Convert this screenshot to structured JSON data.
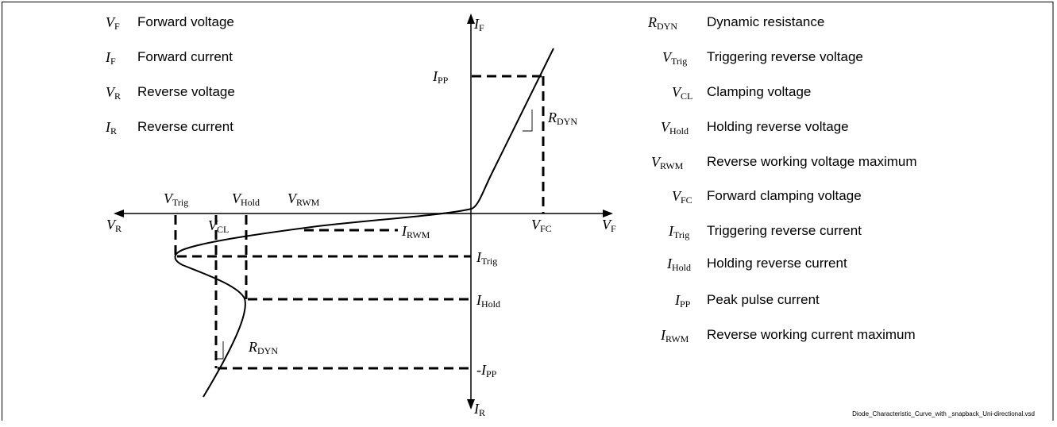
{
  "legend_left": [
    {
      "sym": "V",
      "sub": "F",
      "desc": "Forward voltage"
    },
    {
      "sym": "I",
      "sub": "F",
      "desc": "Forward current"
    },
    {
      "sym": "V",
      "sub": "R",
      "desc": "Reverse voltage"
    },
    {
      "sym": "I",
      "sub": "R",
      "desc": "Reverse current"
    }
  ],
  "legend_right": [
    {
      "sym": "R",
      "sub": "DYN",
      "desc": "Dynamic resistance"
    },
    {
      "sym": "V",
      "sub": "Trig",
      "desc": "Triggering reverse voltage"
    },
    {
      "sym": "V",
      "sub": "CL",
      "desc": "Clamping voltage"
    },
    {
      "sym": "V",
      "sub": "Hold",
      "desc": "Holding reverse voltage"
    },
    {
      "sym": "V",
      "sub": "RWM",
      "desc": "Reverse working voltage maximum"
    },
    {
      "sym": "V",
      "sub": "FC",
      "desc": "Forward clamping voltage"
    },
    {
      "sym": "I",
      "sub": "Trig",
      "desc": "Triggering reverse current"
    },
    {
      "sym": "I",
      "sub": "Hold",
      "desc": "Holding reverse current"
    },
    {
      "sym": "I",
      "sub": "PP",
      "desc": "Peak pulse current"
    },
    {
      "sym": "I",
      "sub": "RWM",
      "desc": "Reverse working current maximum"
    }
  ],
  "labels": {
    "axis_if": {
      "sym": "I",
      "sub": "F"
    },
    "axis_ir": {
      "sym": "I",
      "sub": "R"
    },
    "axis_vf": {
      "sym": "V",
      "sub": "F"
    },
    "axis_vr": {
      "sym": "V",
      "sub": "R"
    },
    "ipp_top": {
      "sym": "I",
      "sub": "PP"
    },
    "ipp_bottom": {
      "sym": "-I",
      "sub": "PP"
    },
    "rdyn_top": {
      "sym": "R",
      "sub": "DYN"
    },
    "rdyn_bottom": {
      "sym": "R",
      "sub": "DYN"
    },
    "vtrig": {
      "sym": "V",
      "sub": "Trig"
    },
    "vhold": {
      "sym": "V",
      "sub": "Hold"
    },
    "vrwm": {
      "sym": "V",
      "sub": "RWM"
    },
    "vcl": {
      "sym": "V",
      "sub": "CL"
    },
    "vfc": {
      "sym": "V",
      "sub": "FC"
    },
    "irwm": {
      "sym": "I",
      "sub": "RWM"
    },
    "itrig": {
      "sym": "I",
      "sub": "Trig"
    },
    "ihold": {
      "sym": "I",
      "sub": "Hold"
    }
  },
  "footer": "Diode_Characteristic_Curve_with _snapback_Uni-directional.vsd"
}
